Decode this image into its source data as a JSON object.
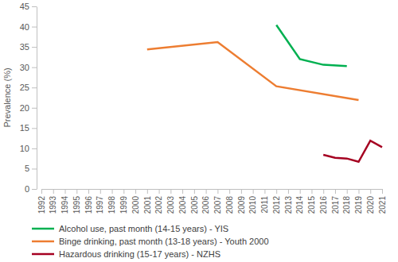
{
  "chart_data": {
    "type": "line",
    "y_label": "Prevalence (%)",
    "xlim": [
      1992,
      2021
    ],
    "xticks": [
      1992,
      1993,
      1994,
      1995,
      1996,
      1997,
      1998,
      1999,
      2000,
      2001,
      2002,
      2003,
      2004,
      2005,
      2006,
      2007,
      2008,
      2009,
      2010,
      2011,
      2012,
      2013,
      2014,
      2015,
      2016,
      2017,
      2018,
      2019,
      2020,
      2021
    ],
    "ylim": [
      0,
      45
    ],
    "yticks": [
      0,
      5,
      10,
      15,
      20,
      25,
      30,
      35,
      40,
      45
    ],
    "grid": false,
    "legend": "bottom",
    "series": [
      {
        "name": "Alcohol use, past month (14-15 years) - YIS",
        "color": "#00b050",
        "x": [
          2012,
          2014,
          2016,
          2018
        ],
        "values": [
          40.4,
          32.0,
          30.6,
          30.3
        ]
      },
      {
        "name": "Binge drinking, past month (13-18 years) - Youth 2000",
        "color": "#ed7d31",
        "x": [
          2001,
          2007,
          2012,
          2019
        ],
        "values": [
          34.4,
          36.2,
          25.3,
          21.9
        ]
      },
      {
        "name": "Hazardous drinking (15-17 years) - NZHS",
        "color": "#a50021",
        "x": [
          2016,
          2017,
          2018,
          2019,
          2020,
          2021
        ],
        "values": [
          8.4,
          7.7,
          7.5,
          6.7,
          11.9,
          10.3
        ]
      }
    ]
  }
}
